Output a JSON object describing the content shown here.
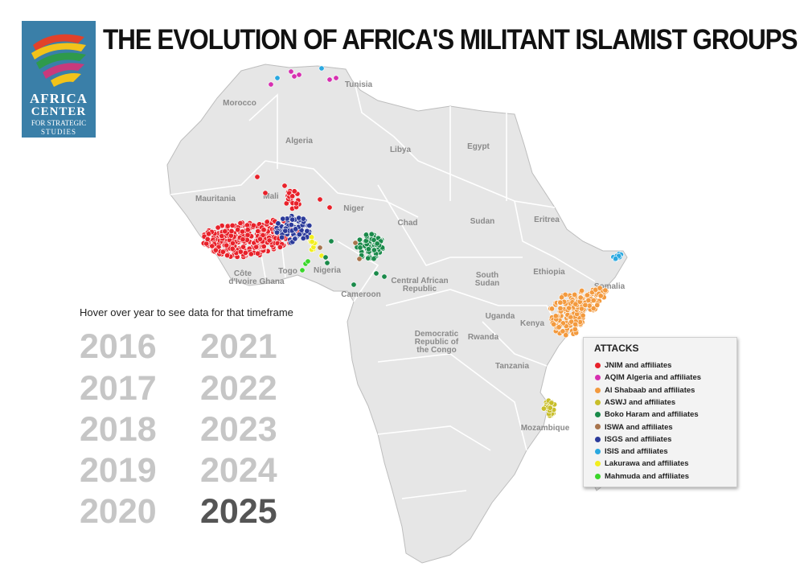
{
  "title": "THE EVOLUTION OF AFRICA'S MILITANT ISLAMIST GROUPS",
  "logo": {
    "line1": "AFRICA",
    "line2": "CENTER",
    "line3": "FOR STRATEGIC",
    "line4": "STUDIES",
    "bg_color": "#3a7fa8"
  },
  "countries": [
    {
      "key": "tunisia",
      "label": "Tunisia"
    },
    {
      "key": "morocco",
      "label": "Morocco"
    },
    {
      "key": "algeria",
      "label": "Algeria"
    },
    {
      "key": "libya",
      "label": "Libya"
    },
    {
      "key": "egypt",
      "label": "Egypt"
    },
    {
      "key": "mauritania",
      "label": "Mauritania"
    },
    {
      "key": "mali",
      "label": "Mali"
    },
    {
      "key": "niger",
      "label": "Niger"
    },
    {
      "key": "chad",
      "label": "Chad"
    },
    {
      "key": "sudan",
      "label": "Sudan"
    },
    {
      "key": "eritrea",
      "label": "Eritrea"
    },
    {
      "key": "ethiopia",
      "label": "Ethiopia"
    },
    {
      "key": "somalia",
      "label": "Somalia"
    },
    {
      "key": "south-sudan",
      "label": "South Sudan"
    },
    {
      "key": "car",
      "label": "Central African Republic"
    },
    {
      "key": "nigeria",
      "label": "Nigeria"
    },
    {
      "key": "cameroon",
      "label": "Cameroon"
    },
    {
      "key": "togo",
      "label": "Togo"
    },
    {
      "key": "ghana",
      "label": "Ghana"
    },
    {
      "key": "cote-divoire",
      "label": "Côte d'Ivoire"
    },
    {
      "key": "uganda",
      "label": "Uganda"
    },
    {
      "key": "kenya",
      "label": "Kenya"
    },
    {
      "key": "rwanda",
      "label": "Rwanda"
    },
    {
      "key": "drc",
      "label": "Democratic Republic of the Congo"
    },
    {
      "key": "tanzania",
      "label": "Tanzania"
    },
    {
      "key": "mozambique",
      "label": "Mozambique"
    }
  ],
  "hover_hint": "Hover over year to see data for that timeframe",
  "years": [
    {
      "label": "2016",
      "active": false
    },
    {
      "label": "2017",
      "active": false
    },
    {
      "label": "2018",
      "active": false
    },
    {
      "label": "2019",
      "active": false
    },
    {
      "label": "2020",
      "active": false
    },
    {
      "label": "2021",
      "active": false
    },
    {
      "label": "2022",
      "active": false
    },
    {
      "label": "2023",
      "active": false
    },
    {
      "label": "2024",
      "active": false
    },
    {
      "label": "2025",
      "active": true
    }
  ],
  "legend": {
    "title": "ATTACKS",
    "items": [
      {
        "label": "JNIM and affiliates",
        "color": "#e8212a"
      },
      {
        "label": "AQIM Algeria and affiliates",
        "color": "#d62fb0"
      },
      {
        "label": "Al Shabaab and affiliates",
        "color": "#f39a3e"
      },
      {
        "label": "ASWJ and affiliates",
        "color": "#c8be2a"
      },
      {
        "label": "Boko Haram and affiliates",
        "color": "#1a8a4a"
      },
      {
        "label": "ISWA and affiliates",
        "color": "#a8744d"
      },
      {
        "label": "ISGS and affiliates",
        "color": "#2b3a9a"
      },
      {
        "label": "ISIS and affiliates",
        "color": "#2aa8e0"
      },
      {
        "label": "Lakurawa and affiliates",
        "color": "#f2ee1e"
      },
      {
        "label": "Mahmuda and affiliates",
        "color": "#3ad62a"
      }
    ]
  },
  "map_colors": {
    "land": "#e6e6e6",
    "border": "#ffffff",
    "outline": "#bdbdbd",
    "label": "#8a8a8a"
  }
}
